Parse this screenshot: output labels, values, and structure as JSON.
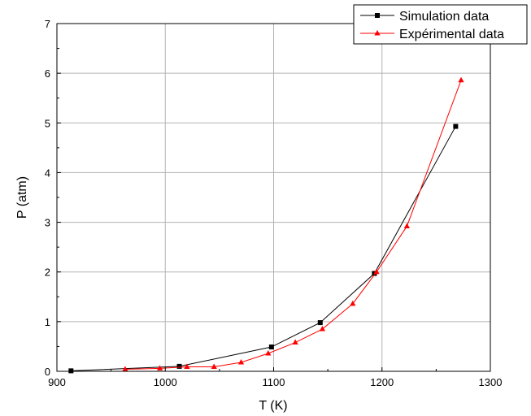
{
  "chart_data": {
    "type": "line",
    "title": "",
    "xlabel": "T (K)",
    "ylabel": "P (atm)",
    "xlim": [
      900,
      1300
    ],
    "ylim": [
      0,
      7
    ],
    "x_ticks": [
      "900",
      "1000",
      "1100",
      "1200",
      "1300"
    ],
    "y_ticks": [
      "0",
      "1",
      "2",
      "3",
      "4",
      "5",
      "6",
      "7"
    ],
    "grid": true,
    "legend_position": "top-right",
    "series": [
      {
        "name": "Simulation data",
        "color": "#000000",
        "marker": "square",
        "x": [
          913,
          1013,
          1098,
          1143,
          1193,
          1268
        ],
        "y": [
          0.01,
          0.1,
          0.49,
          0.98,
          1.97,
          4.93
        ]
      },
      {
        "name": "Expérimental data",
        "color": "#ff0000",
        "marker": "triangle",
        "x": [
          963,
          995,
          1020,
          1045,
          1070,
          1095,
          1120,
          1145,
          1173,
          1195,
          1223,
          1273
        ],
        "y": [
          0.04,
          0.06,
          0.09,
          0.09,
          0.18,
          0.36,
          0.58,
          0.85,
          1.36,
          2.0,
          2.92,
          5.86
        ]
      }
    ]
  }
}
